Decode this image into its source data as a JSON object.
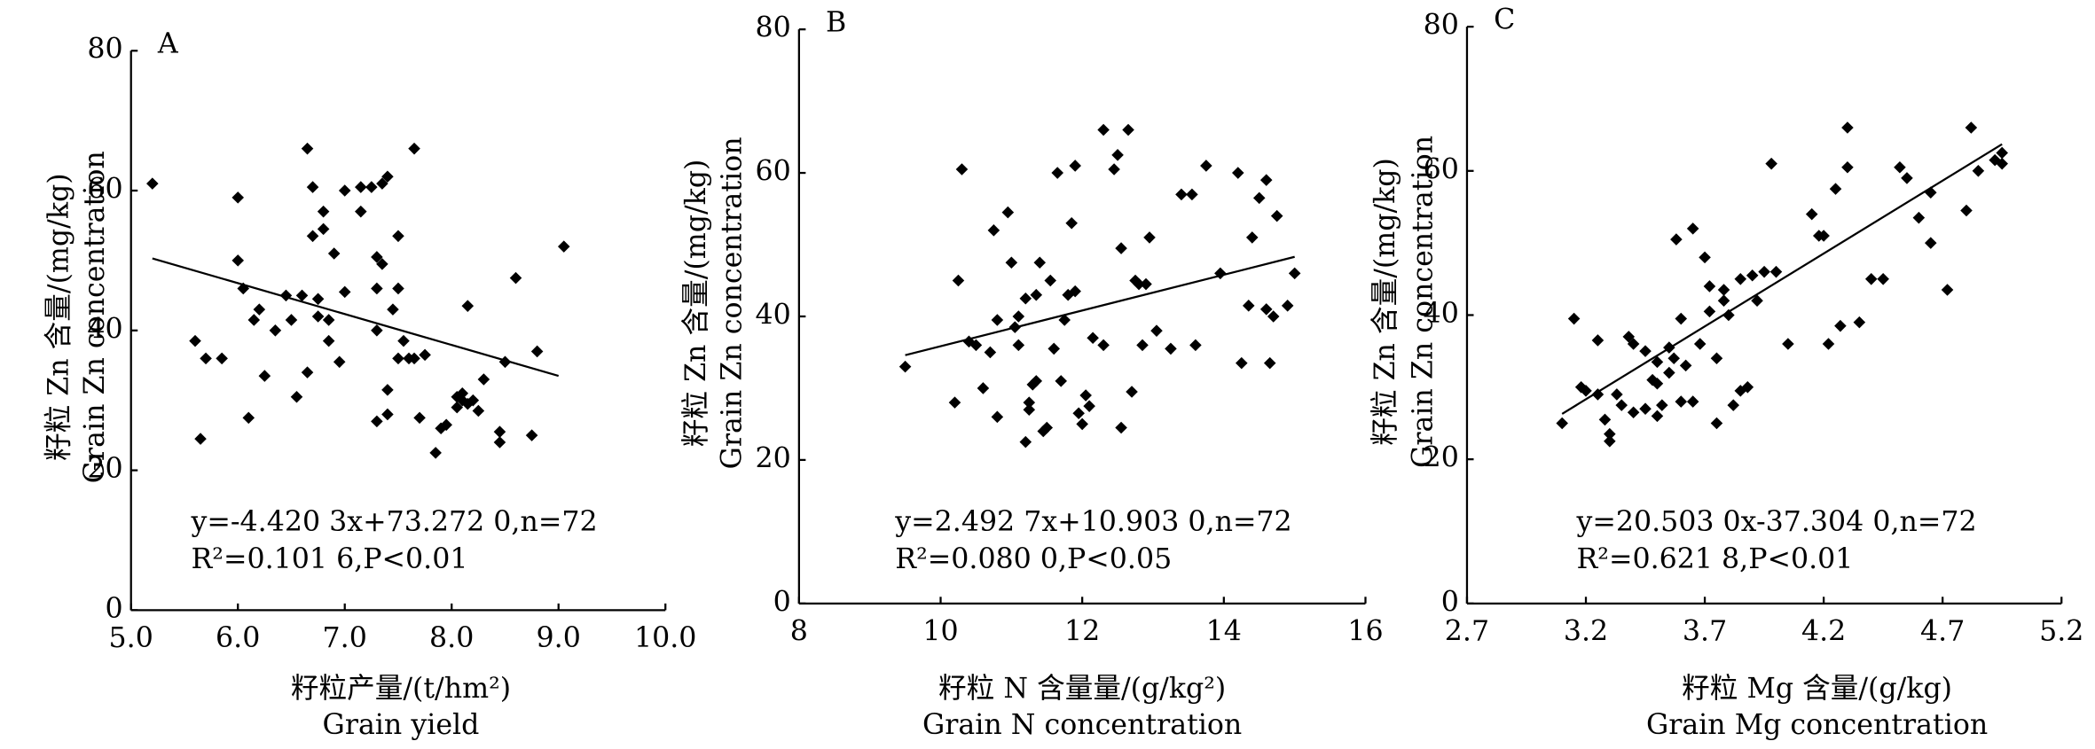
{
  "chart_data": [
    {
      "type": "scatter",
      "label": "A",
      "color": "#000000",
      "ylabel": "籽粒 Zn 含量/(mg/kg)",
      "ylabel_en": "Grain Zn concentration",
      "xlabel": "籽粒产量/(t/hm²)",
      "xlabel_en": "Grain yield",
      "annotations": [
        "y=-4.420 3x+73.272 0,n=72",
        "R²=0.101 6,P<0.01"
      ],
      "xlim": [
        5,
        10
      ],
      "xticks": [
        {
          "value": 5,
          "label": "5.0"
        },
        {
          "value": 6,
          "label": "6.0"
        },
        {
          "value": 7,
          "label": "7.0"
        },
        {
          "value": 8,
          "label": "8.0"
        },
        {
          "value": 9,
          "label": "9.0"
        },
        {
          "value": 10,
          "label": "10.0"
        }
      ],
      "ylim": [
        0,
        80
      ],
      "yticks": [
        0,
        20,
        40,
        60,
        80
      ],
      "trend_line": {
        "x": [
          5.2,
          9.0
        ],
        "y": [
          50.3,
          33.5
        ]
      },
      "x": [
        5.2,
        5.6,
        5.65,
        5.7,
        5.85,
        6.0,
        6.0,
        6.05,
        6.1,
        6.15,
        6.2,
        6.25,
        6.35,
        6.45,
        6.5,
        6.55,
        6.6,
        6.65,
        6.65,
        6.7,
        6.7,
        6.75,
        6.75,
        6.8,
        6.8,
        6.85,
        6.85,
        6.9,
        6.95,
        7.0,
        7.0,
        7.15,
        7.15,
        7.25,
        7.3,
        7.3,
        7.3,
        7.3,
        7.35,
        7.35,
        7.4,
        7.4,
        7.4,
        7.45,
        7.5,
        7.5,
        7.5,
        7.55,
        7.6,
        7.65,
        7.7,
        7.75,
        7.85,
        7.9,
        7.95,
        8.05,
        8.05,
        8.1,
        8.15,
        8.15,
        8.2,
        8.25,
        8.3,
        8.45,
        8.45,
        8.5,
        8.6,
        8.75,
        8.8,
        9.05,
        7.65,
        8.1
      ],
      "values": [
        61,
        38.5,
        24.5,
        36,
        36,
        59,
        50,
        46,
        27.5,
        41.5,
        43,
        33.5,
        40,
        45,
        41.5,
        30.5,
        45,
        34,
        66,
        60.5,
        53.5,
        44.5,
        42,
        57,
        54.5,
        41.5,
        38.5,
        51,
        35.5,
        45.5,
        60,
        57,
        60.5,
        60.5,
        40,
        50.5,
        46,
        27,
        49.5,
        61,
        62,
        28,
        31.5,
        43,
        53.5,
        46,
        36,
        38.5,
        36,
        66,
        27.5,
        36.5,
        22.5,
        26,
        26.5,
        29,
        30.5,
        30,
        29.5,
        43.5,
        30,
        28.5,
        33,
        24,
        25.5,
        35.5,
        47.5,
        25,
        37,
        52,
        36,
        31
      ]
    },
    {
      "type": "scatter",
      "label": "B",
      "color": "#000000",
      "ylabel": "籽粒 Zn 含量/(mg/kg)",
      "ylabel_en": "Grain Zn concentration",
      "xlabel": "籽粒 N 含量量/(g/kg²)",
      "xlabel_en": "Grain N concentration",
      "annotations": [
        "y=2.492 7x+10.903 0,n=72",
        "R²=0.080 0,P<0.05"
      ],
      "xlim": [
        8,
        16
      ],
      "xticks": [
        8,
        10,
        12,
        14,
        16
      ],
      "ylim": [
        0,
        80
      ],
      "yticks": [
        0,
        20,
        40,
        60,
        80
      ],
      "trend_line": {
        "x": [
          9.5,
          15.0
        ],
        "y": [
          34.6,
          48.3
        ]
      },
      "x": [
        9.5,
        10.2,
        10.25,
        10.3,
        10.4,
        10.6,
        10.7,
        10.75,
        10.8,
        10.8,
        10.95,
        11.0,
        11.05,
        11.1,
        11.2,
        11.2,
        11.25,
        11.25,
        11.3,
        11.35,
        11.35,
        11.4,
        11.45,
        11.5,
        11.55,
        11.6,
        11.65,
        11.7,
        11.75,
        11.85,
        11.9,
        11.9,
        11.95,
        12.0,
        12.05,
        12.1,
        12.15,
        12.3,
        12.3,
        12.45,
        12.5,
        12.55,
        12.55,
        12.65,
        12.75,
        12.8,
        12.85,
        12.95,
        13.05,
        13.25,
        13.4,
        13.55,
        13.6,
        13.75,
        13.95,
        14.2,
        14.25,
        14.35,
        14.4,
        14.5,
        14.6,
        14.6,
        14.65,
        14.7,
        14.75,
        14.9,
        15.0,
        12.7,
        11.1,
        12.9,
        10.5,
        11.8
      ],
      "values": [
        33,
        28,
        45,
        60.5,
        36.5,
        30,
        35,
        52,
        26,
        39.5,
        54.5,
        47.5,
        38.5,
        40,
        42.5,
        22.5,
        27,
        28,
        30.5,
        31,
        43,
        47.5,
        24,
        24.5,
        45,
        35.5,
        60,
        31,
        39.5,
        53,
        43.5,
        61,
        26.5,
        25,
        29,
        27.5,
        37,
        66,
        36,
        60.5,
        62.5,
        24.5,
        49.5,
        66,
        45,
        44.5,
        36,
        51,
        38,
        35.5,
        57,
        57,
        36,
        61,
        46,
        60,
        33.5,
        41.5,
        51,
        56.5,
        59,
        41,
        33.5,
        40,
        54,
        41.5,
        46,
        29.5,
        36,
        44.5,
        36,
        43
      ]
    },
    {
      "type": "scatter",
      "label": "C",
      "color": "#000000",
      "ylabel": "籽粒 Zn 含量/(mg/kg)",
      "ylabel_en": "Grain Zn concentration",
      "xlabel": "籽粒 Mg 含量/(g/kg)",
      "xlabel_en": "Grain Mg concentration",
      "annotations": [
        "y=20.503 0x-37.304 0,n=72",
        "R²=0.621 8,P<0.01"
      ],
      "xlim": [
        2.7,
        5.2
      ],
      "xticks": [
        2.7,
        3.2,
        3.7,
        4.2,
        4.7,
        5.2
      ],
      "ylim": [
        0,
        80
      ],
      "yticks": [
        0,
        20,
        40,
        60,
        80
      ],
      "trend_line": {
        "x": [
          3.1,
          4.95
        ],
        "y": [
          26.3,
          63.7
        ]
      },
      "x": [
        3.1,
        3.15,
        3.18,
        3.2,
        3.25,
        3.25,
        3.28,
        3.3,
        3.3,
        3.35,
        3.38,
        3.4,
        3.4,
        3.45,
        3.48,
        3.5,
        3.5,
        3.5,
        3.52,
        3.55,
        3.55,
        3.58,
        3.6,
        3.62,
        3.65,
        3.65,
        3.68,
        3.7,
        3.72,
        3.75,
        3.75,
        3.78,
        3.78,
        3.8,
        3.82,
        3.85,
        3.85,
        3.88,
        3.9,
        3.92,
        3.95,
        3.98,
        4.05,
        4.15,
        4.2,
        4.22,
        4.25,
        4.27,
        4.3,
        4.3,
        4.35,
        4.4,
        4.45,
        4.52,
        4.55,
        4.6,
        4.65,
        4.65,
        4.72,
        4.8,
        4.82,
        4.85,
        4.92,
        4.95,
        4.95,
        4.0,
        3.6,
        3.45,
        4.18,
        3.72,
        3.33,
        3.57
      ],
      "values": [
        25,
        39.5,
        30,
        29.5,
        36.5,
        29,
        25.5,
        23.5,
        22.5,
        27.5,
        37,
        36,
        26.5,
        35,
        31,
        30.5,
        26,
        33.5,
        27.5,
        32,
        35.5,
        50.5,
        39.5,
        33,
        52,
        28,
        36,
        48,
        44,
        34,
        25,
        42,
        43.5,
        40,
        27.5,
        45,
        29.5,
        30,
        45.5,
        42,
        46,
        61,
        36,
        54,
        51,
        36,
        57.5,
        38.5,
        60.5,
        66,
        39,
        45,
        45,
        60.5,
        59,
        53.5,
        57,
        50,
        43.5,
        54.5,
        66,
        60,
        61.5,
        62.5,
        61,
        46,
        28,
        27,
        51,
        40.5,
        29,
        34
      ]
    }
  ]
}
